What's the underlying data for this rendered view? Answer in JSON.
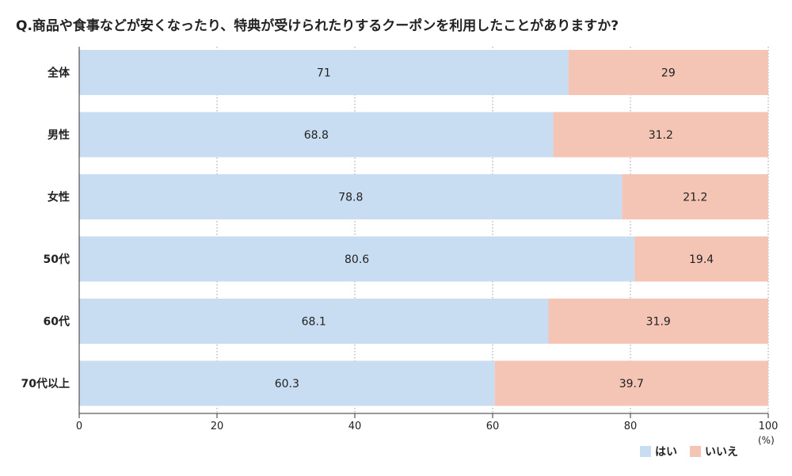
{
  "title": "Q.商品や食事などが安くなったり、特典が受けられたりするクーポンを利用したことがありますか?",
  "unit": "(%)",
  "colors": {
    "yes": "#c9ddf2",
    "no": "#f4c5b4"
  },
  "chart_data": {
    "type": "bar",
    "orientation": "horizontal",
    "stacked": true,
    "categories": [
      "全体",
      "男性",
      "女性",
      "50代",
      "60代",
      "70代以上"
    ],
    "series": [
      {
        "name": "はい",
        "values": [
          71,
          68.8,
          78.8,
          80.6,
          68.1,
          60.3
        ]
      },
      {
        "name": "いいえ",
        "values": [
          29,
          31.2,
          21.2,
          19.4,
          31.9,
          39.7
        ]
      }
    ],
    "value_labels": [
      [
        "71",
        "68.8",
        "78.8",
        "80.6",
        "68.1",
        "60.3"
      ],
      [
        "29",
        "31.2",
        "21.2",
        "19.4",
        "31.9",
        "39.7"
      ]
    ],
    "xlim": [
      0,
      100
    ],
    "xticks": [
      "0",
      "20",
      "40",
      "60",
      "80",
      "100"
    ],
    "grid": "vertical dotted",
    "legend_position": "bottom-right"
  }
}
